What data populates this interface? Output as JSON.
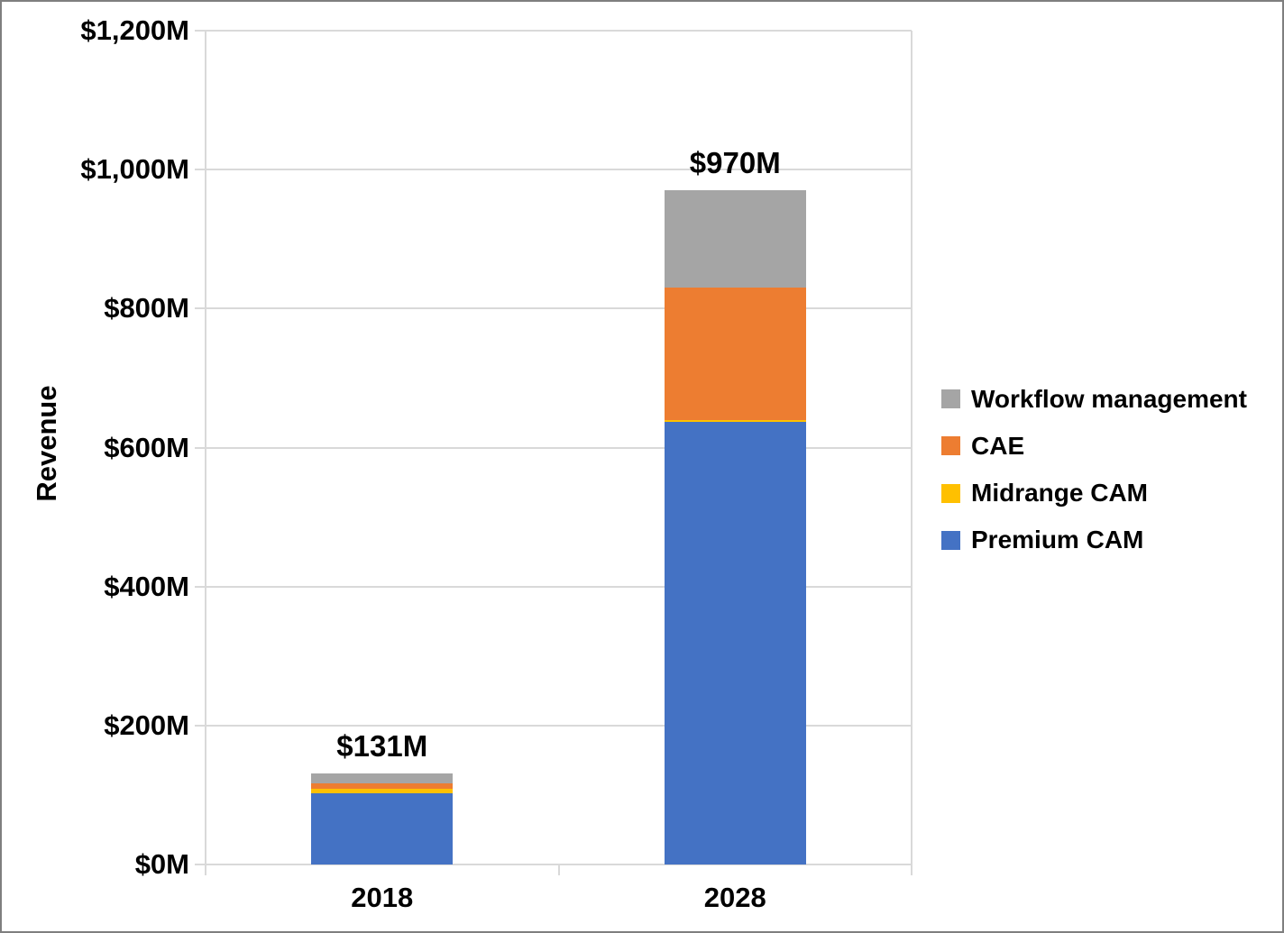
{
  "chart_data": {
    "type": "bar",
    "stacked": true,
    "ylabel": "Revenue",
    "categories": [
      "2018",
      "2028"
    ],
    "series": [
      {
        "name": "Premium CAM",
        "color": "#4472C4",
        "values": [
          102,
          637
        ]
      },
      {
        "name": "Midrange CAM",
        "color": "#FFC000",
        "values": [
          7,
          3
        ]
      },
      {
        "name": "CAE",
        "color": "#ED7D31",
        "values": [
          8,
          190
        ]
      },
      {
        "name": "Workflow management",
        "color": "#A5A5A5",
        "values": [
          14,
          140
        ]
      }
    ],
    "totals": [
      131,
      970
    ],
    "total_labels": [
      "$131M",
      "$970M"
    ],
    "ylim": [
      0,
      1200
    ],
    "ytick_step": 200,
    "ytick_labels": [
      "$0M",
      "$200M",
      "$400M",
      "$600M",
      "$800M",
      "$1,000M",
      "$1,200M"
    ],
    "grid": true,
    "legend_position": "right",
    "legend_order": [
      "Workflow management",
      "CAE",
      "Midrange CAM",
      "Premium CAM"
    ],
    "colors": {
      "gridline": "#D9D9D9",
      "axis": "#D9D9D9",
      "text": "#000000",
      "frame_border": "#7F7F7F"
    }
  }
}
